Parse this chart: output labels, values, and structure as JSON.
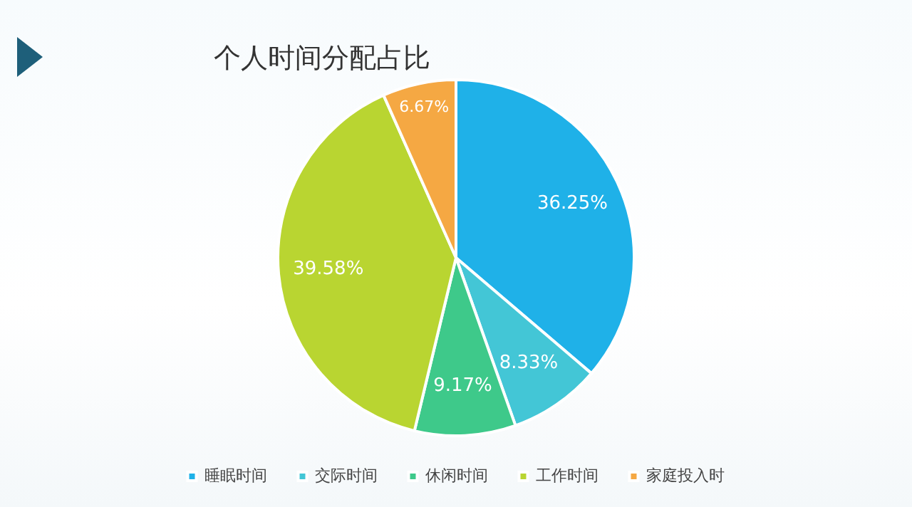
{
  "chart_data": {
    "type": "pie",
    "title": "个人时间分配占比",
    "categories": [
      "睡眠时间",
      "交际时间",
      "休闲时间",
      "工作时间",
      "家庭投入时"
    ],
    "values": [
      36.25,
      8.33,
      9.17,
      39.58,
      6.67
    ],
    "colors": [
      "#1fb1e8",
      "#43c6d6",
      "#3ec98a",
      "#b9d531",
      "#f5a843"
    ],
    "value_labels": [
      "36.25%",
      "8.33%",
      "9.17%",
      "39.58%",
      "6.67%"
    ],
    "legend": "bottom"
  }
}
